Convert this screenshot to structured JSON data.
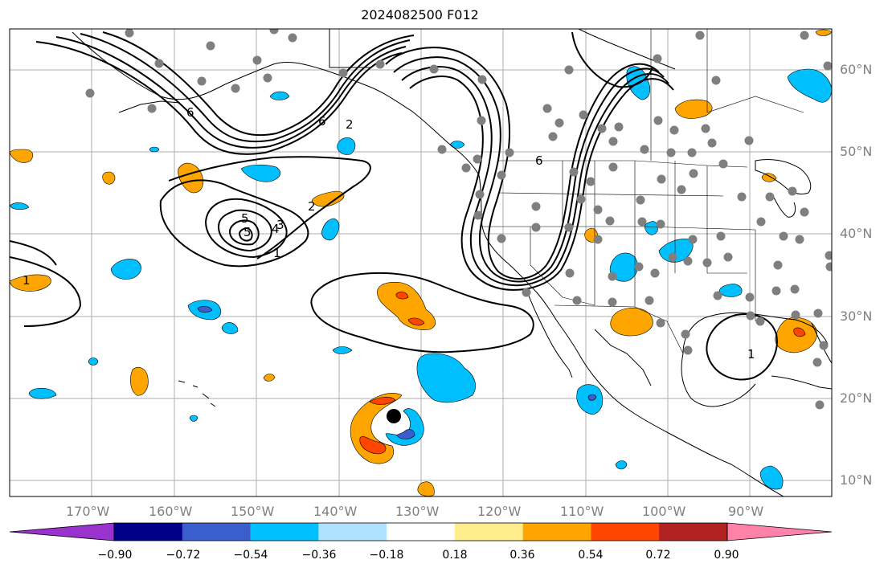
{
  "title": "2024082500 F012",
  "map": {
    "lon_range": [
      -180,
      -80
    ],
    "lat_range": [
      8,
      65
    ],
    "lat_labels": [
      "10°N",
      "20°N",
      "30°N",
      "40°N",
      "50°N",
      "60°N"
    ],
    "lon_labels": [
      "170°W",
      "160°W",
      "150°W",
      "140°W",
      "130°W",
      "120°W",
      "110°W",
      "100°W",
      "90°W"
    ],
    "contour_labels": [
      "6",
      "2",
      "6",
      "5",
      "5",
      "4",
      "3",
      "2",
      "1",
      "1",
      "6",
      "1"
    ],
    "colors": {
      "land_line": "#000000",
      "grid": "#999999",
      "station_dot": "#7f7f7f",
      "storm_center": "#000000"
    }
  },
  "colorbar": {
    "colors": [
      "#9a32cd",
      "#00008b",
      "#3a5fcd",
      "#00bfff",
      "#b0e2ff",
      "#ffffff",
      "#ffec8b",
      "#ffa500",
      "#ff4500",
      "#b22222",
      "#ff82ab"
    ],
    "labels": [
      "−0.90",
      "−0.72",
      "−0.54",
      "−0.36",
      "−0.18",
      "0.18",
      "0.36",
      "0.54",
      "0.72",
      "0.90"
    ]
  }
}
